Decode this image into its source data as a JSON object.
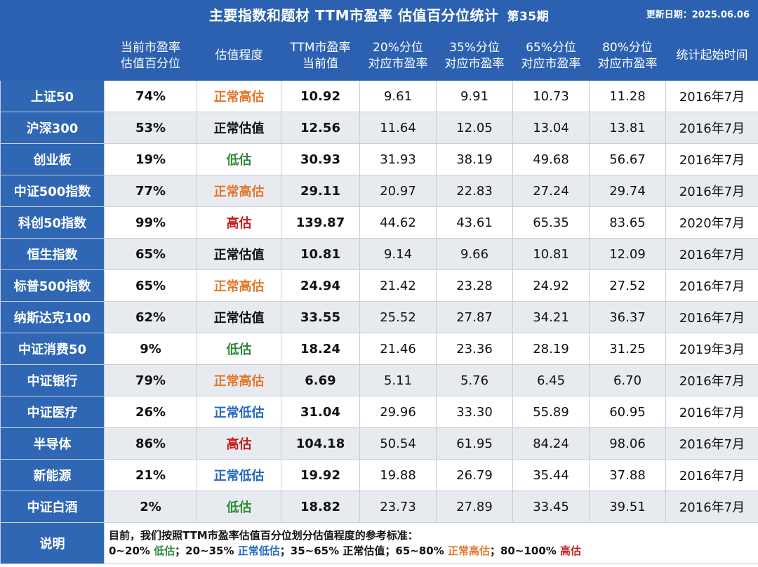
{
  "header": {
    "title": "主要指数和题材 TTM市盈率 估值百分位统计",
    "issue": "第35期",
    "update_date": "更新日期：2025.06.06"
  },
  "colors": {
    "header_blue": "#2b61b0",
    "low": "#2f8a3a",
    "normal_low": "#2368c2",
    "normal": "#111111",
    "normal_high": "#e3782b",
    "high": "#c62020"
  },
  "columns": [
    "",
    "当前市盈率\n估值百分位",
    "估值程度",
    "TTM市盈率\n当前值",
    "20%分位\n对应市盈率",
    "35%分位\n对应市盈率",
    "65%分位\n对应市盈率",
    "80%分位\n对应市盈率",
    "统计起始时间"
  ],
  "rows": [
    {
      "name": "上证50",
      "pct": "74%",
      "level": "正常高估",
      "level_class": "normal-high",
      "pe": "10.92",
      "p20": "9.61",
      "p35": "9.91",
      "p65": "10.73",
      "p80": "11.28",
      "start": "2016年7月"
    },
    {
      "name": "沪深300",
      "pct": "53%",
      "level": "正常估值",
      "level_class": "normal",
      "pe": "12.56",
      "p20": "11.64",
      "p35": "12.05",
      "p65": "13.04",
      "p80": "13.81",
      "start": "2016年7月"
    },
    {
      "name": "创业板",
      "pct": "19%",
      "level": "低估",
      "level_class": "low",
      "pe": "30.93",
      "p20": "31.93",
      "p35": "38.19",
      "p65": "49.68",
      "p80": "56.67",
      "start": "2016年7月"
    },
    {
      "name": "中证500指数",
      "pct": "77%",
      "level": "正常高估",
      "level_class": "normal-high",
      "pe": "29.11",
      "p20": "20.97",
      "p35": "22.83",
      "p65": "27.24",
      "p80": "29.74",
      "start": "2016年7月"
    },
    {
      "name": "科创50指数",
      "pct": "99%",
      "level": "高估",
      "level_class": "high",
      "pe": "139.87",
      "p20": "44.62",
      "p35": "43.61",
      "p65": "65.35",
      "p80": "83.65",
      "start": "2020年7月"
    },
    {
      "name": "恒生指数",
      "pct": "65%",
      "level": "正常估值",
      "level_class": "normal",
      "pe": "10.81",
      "p20": "9.14",
      "p35": "9.66",
      "p65": "10.81",
      "p80": "12.09",
      "start": "2016年7月"
    },
    {
      "name": "标普500指数",
      "pct": "65%",
      "level": "正常高估",
      "level_class": "normal-high",
      "pe": "24.94",
      "p20": "21.42",
      "p35": "23.28",
      "p65": "24.92",
      "p80": "27.52",
      "start": "2016年7月"
    },
    {
      "name": "纳斯达克100",
      "pct": "62%",
      "level": "正常估值",
      "level_class": "normal",
      "pe": "33.55",
      "p20": "25.52",
      "p35": "27.87",
      "p65": "34.21",
      "p80": "36.37",
      "start": "2016年7月"
    },
    {
      "name": "中证消费50",
      "pct": "9%",
      "level": "低估",
      "level_class": "low",
      "pe": "18.24",
      "p20": "21.46",
      "p35": "23.36",
      "p65": "28.19",
      "p80": "31.25",
      "start": "2019年3月"
    },
    {
      "name": "中证银行",
      "pct": "79%",
      "level": "正常高估",
      "level_class": "normal-high",
      "pe": "6.69",
      "p20": "5.11",
      "p35": "5.76",
      "p65": "6.45",
      "p80": "6.70",
      "start": "2016年7月"
    },
    {
      "name": "中证医疗",
      "pct": "26%",
      "level": "正常低估",
      "level_class": "normal-low",
      "pe": "31.04",
      "p20": "29.96",
      "p35": "33.30",
      "p65": "55.89",
      "p80": "60.95",
      "start": "2016年7月"
    },
    {
      "name": "半导体",
      "pct": "86%",
      "level": "高估",
      "level_class": "high",
      "pe": "104.18",
      "p20": "50.54",
      "p35": "61.95",
      "p65": "84.24",
      "p80": "98.06",
      "start": "2016年7月"
    },
    {
      "name": "新能源",
      "pct": "21%",
      "level": "正常低估",
      "level_class": "normal-low",
      "pe": "19.92",
      "p20": "19.88",
      "p35": "26.79",
      "p65": "35.44",
      "p80": "37.88",
      "start": "2016年7月"
    },
    {
      "name": "中证白酒",
      "pct": "2%",
      "level": "低估",
      "level_class": "low",
      "pe": "18.82",
      "p20": "23.73",
      "p35": "27.89",
      "p65": "33.45",
      "p80": "39.51",
      "start": "2016年7月"
    }
  ],
  "notes": {
    "label": "说明",
    "line1": "目前，我们按照TTM市盈率估值百分位划分估值程度的参考标准：",
    "legend": [
      {
        "range": "0~20% ",
        "level": "低估",
        "level_class": "low",
        "sep": "；"
      },
      {
        "range": "20~35% ",
        "level": "正常低估",
        "level_class": "normal-low",
        "sep": "；"
      },
      {
        "range": "35~65% ",
        "level": "正常估值",
        "level_class": "normal",
        "sep": "；"
      },
      {
        "range": "65~80% ",
        "level": "正常高估",
        "level_class": "normal-high",
        "sep": "；"
      },
      {
        "range": "80~100% ",
        "level": "高估",
        "level_class": "high",
        "sep": ""
      }
    ]
  }
}
